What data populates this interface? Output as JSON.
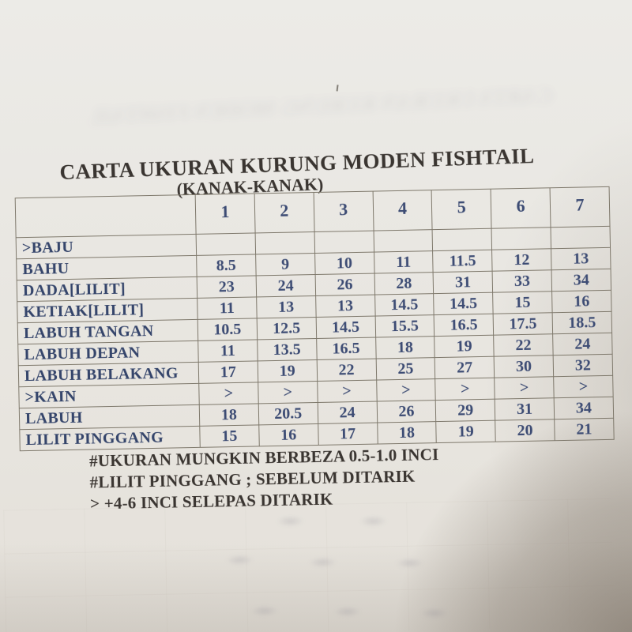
{
  "doc": {
    "title": "CARTA UKURAN KURUNG MODEN FISHTAIL",
    "subtitle": "(KANAK-KANAK)"
  },
  "table": {
    "columns": [
      "1",
      "2",
      "3",
      "4",
      "5",
      "6",
      "7"
    ],
    "rows": [
      {
        "label": ">BAJU",
        "values": [
          "",
          "",
          "",
          "",
          "",
          "",
          ""
        ]
      },
      {
        "label": "BAHU",
        "values": [
          "8.5",
          "9",
          "10",
          "11",
          "11.5",
          "12",
          "13"
        ]
      },
      {
        "label": "DADA[LILIT]",
        "values": [
          "23",
          "24",
          "26",
          "28",
          "31",
          "33",
          "34"
        ]
      },
      {
        "label": "KETIAK[LILIT]",
        "values": [
          "11",
          "13",
          "13",
          "14.5",
          "14.5",
          "15",
          "16"
        ]
      },
      {
        "label": "LABUH TANGAN",
        "values": [
          "10.5",
          "12.5",
          "14.5",
          "15.5",
          "16.5",
          "17.5",
          "18.5"
        ]
      },
      {
        "label": "LABUH DEPAN",
        "values": [
          "11",
          "13.5",
          "16.5",
          "18",
          "19",
          "22",
          "24"
        ]
      },
      {
        "label": "LABUH BELAKANG",
        "values": [
          "17",
          "19",
          "22",
          "25",
          "27",
          "30",
          "32"
        ]
      },
      {
        "label": ">KAIN",
        "values": [
          ">",
          ">",
          ">",
          ">",
          ">",
          ">",
          ">"
        ]
      },
      {
        "label": "LABUH",
        "values": [
          "18",
          "20.5",
          "24",
          "26",
          "29",
          "31",
          "34"
        ]
      },
      {
        "label": "LILIT PINGGANG",
        "values": [
          "15",
          "16",
          "17",
          "18",
          "19",
          "20",
          "21"
        ]
      }
    ]
  },
  "notes": [
    "#UKURAN MUNGKIN BERBEZA 0.5-1.0 INCI",
    "#LILIT PINGGANG ; SEBELUM DITARIK",
    "> +4-6 INCI SELEPAS DITARIK"
  ],
  "artifacts": {
    "ghost_title": "CARTA UKURAN KURUNG MODEN FISHTAIL"
  },
  "colors": {
    "paper": "#e8e5e0",
    "table_text_navy": "#3d4c74",
    "heading_text": "#3a3531",
    "table_border": "#7e786b",
    "corner_shadow": "#9a8f82"
  }
}
